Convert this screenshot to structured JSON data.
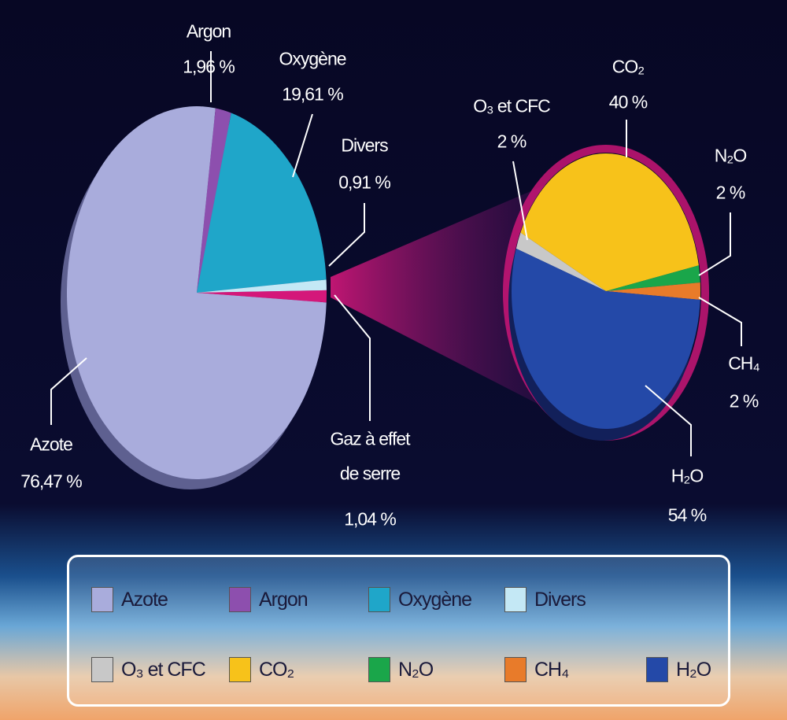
{
  "chart_data": [
    {
      "type": "pie",
      "categories": [
        "Azote",
        "Argon",
        "Oxygène",
        "Divers",
        "Gaz à effet de serre"
      ],
      "values": [
        76.47,
        1.96,
        19.61,
        0.91,
        1.04
      ],
      "value_labels": [
        "76,47 %",
        "1,96 %",
        "19,61 %",
        "0,91 %",
        "1,04 %"
      ],
      "colors": [
        "#a9acdc",
        "#8d4fae",
        "#1fa6c9",
        "#c4e8f5",
        "#d4177a"
      ]
    },
    {
      "type": "pie",
      "categories": [
        "O₃ et CFC",
        "CO₂",
        "N₂O",
        "CH₄",
        "H₂O"
      ],
      "values": [
        2,
        40,
        2,
        2,
        54
      ],
      "value_labels": [
        "2 %",
        "40 %",
        "2 %",
        "2 %",
        "54 %"
      ],
      "colors": [
        "#c8c8c8",
        "#f7c21a",
        "#1aa64a",
        "#e87b2a",
        "#2449a8"
      ]
    }
  ]
}
